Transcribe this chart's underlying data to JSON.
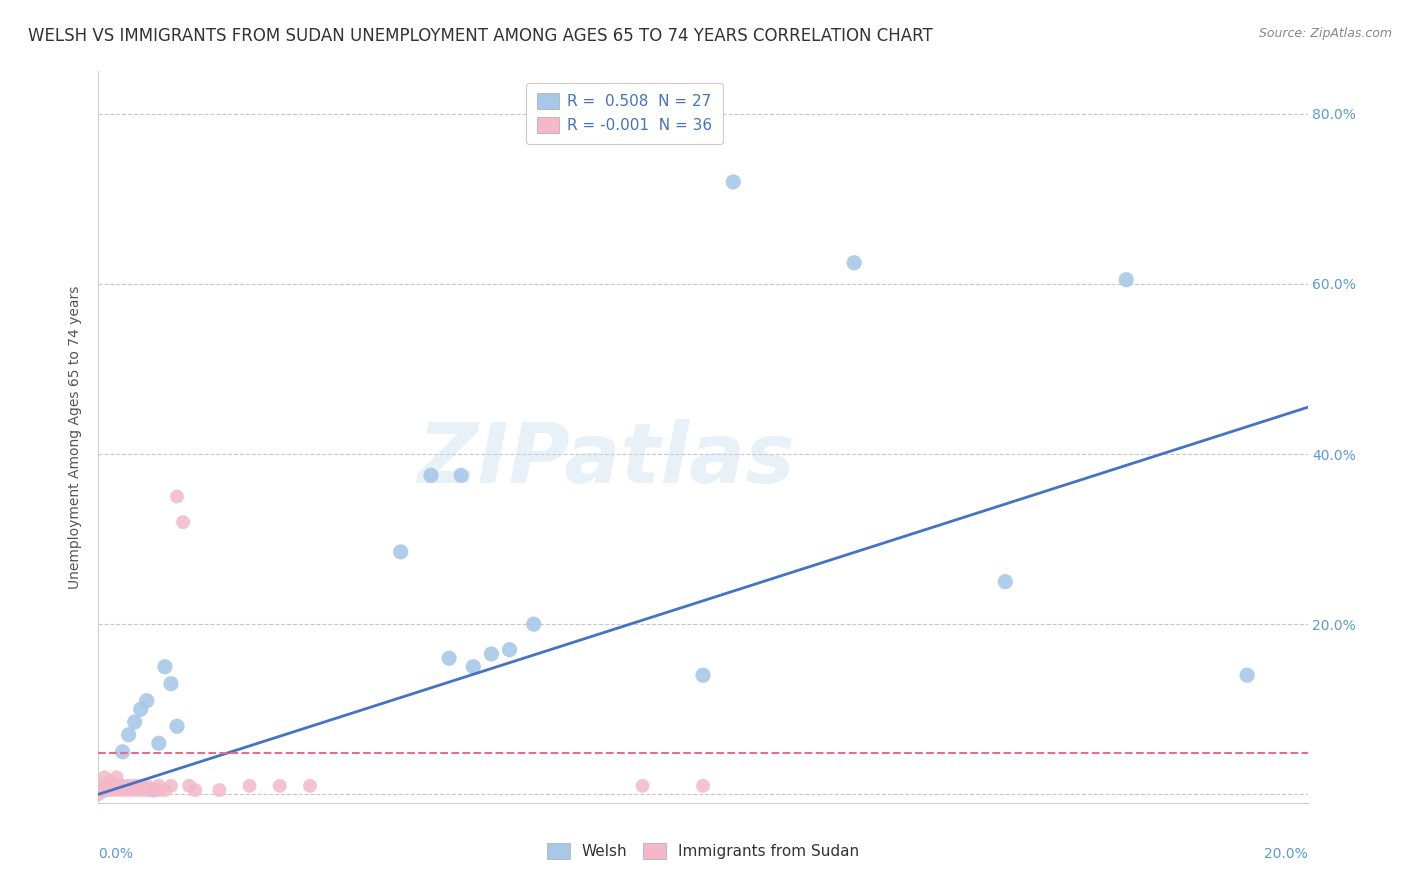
{
  "title": "WELSH VS IMMIGRANTS FROM SUDAN UNEMPLOYMENT AMONG AGES 65 TO 74 YEARS CORRELATION CHART",
  "source": "Source: ZipAtlas.com",
  "ylabel": "Unemployment Among Ages 65 to 74 years",
  "xlim": [
    0.0,
    0.2
  ],
  "ylim": [
    -0.01,
    0.85
  ],
  "welsh_R": 0.508,
  "welsh_N": 27,
  "sudan_R": -0.001,
  "sudan_N": 36,
  "welsh_color": "#a8c8e8",
  "welsh_line_color": "#4472c4",
  "sudan_color": "#f4b8c8",
  "sudan_line_color": "#e07090",
  "watermark": "ZIPatlas",
  "title_fontsize": 12,
  "axis_label_fontsize": 10,
  "tick_fontsize": 10,
  "welsh_x": [
    0.001,
    0.002,
    0.003,
    0.004,
    0.005,
    0.006,
    0.007,
    0.008,
    0.009,
    0.01,
    0.011,
    0.012,
    0.013,
    0.05,
    0.055,
    0.058,
    0.06,
    0.062,
    0.065,
    0.068,
    0.072,
    0.1,
    0.105,
    0.125,
    0.15,
    0.17,
    0.19
  ],
  "welsh_y": [
    0.005,
    0.008,
    0.01,
    0.05,
    0.07,
    0.085,
    0.1,
    0.11,
    0.005,
    0.06,
    0.15,
    0.13,
    0.08,
    0.285,
    0.375,
    0.16,
    0.375,
    0.15,
    0.165,
    0.17,
    0.2,
    0.14,
    0.72,
    0.625,
    0.25,
    0.605,
    0.14
  ],
  "sudan_x": [
    0.0,
    0.0,
    0.001,
    0.001,
    0.001,
    0.002,
    0.002,
    0.002,
    0.003,
    0.003,
    0.003,
    0.004,
    0.004,
    0.005,
    0.005,
    0.006,
    0.006,
    0.007,
    0.007,
    0.008,
    0.008,
    0.009,
    0.01,
    0.01,
    0.011,
    0.012,
    0.013,
    0.014,
    0.015,
    0.016,
    0.02,
    0.025,
    0.03,
    0.035,
    0.09,
    0.1
  ],
  "sudan_y": [
    0.0,
    0.005,
    0.005,
    0.01,
    0.02,
    0.005,
    0.01,
    0.015,
    0.005,
    0.01,
    0.02,
    0.005,
    0.01,
    0.005,
    0.01,
    0.005,
    0.01,
    0.005,
    0.01,
    0.005,
    0.01,
    0.005,
    0.005,
    0.01,
    0.005,
    0.01,
    0.35,
    0.32,
    0.01,
    0.005,
    0.005,
    0.01,
    0.01,
    0.01,
    0.01,
    0.01
  ],
  "welsh_line_x": [
    0.0,
    0.2
  ],
  "welsh_line_y": [
    0.0,
    0.455
  ],
  "sudan_line_x": [
    0.0,
    0.2
  ],
  "sudan_line_y": [
    0.048,
    0.048
  ]
}
